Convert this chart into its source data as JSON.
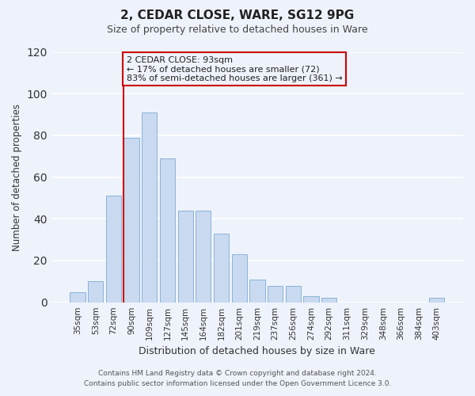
{
  "title": "2, CEDAR CLOSE, WARE, SG12 9PG",
  "subtitle": "Size of property relative to detached houses in Ware",
  "xlabel": "Distribution of detached houses by size in Ware",
  "ylabel": "Number of detached properties",
  "bar_labels": [
    "35sqm",
    "53sqm",
    "72sqm",
    "90sqm",
    "109sqm",
    "127sqm",
    "145sqm",
    "164sqm",
    "182sqm",
    "201sqm",
    "219sqm",
    "237sqm",
    "256sqm",
    "274sqm",
    "292sqm",
    "311sqm",
    "329sqm",
    "348sqm",
    "366sqm",
    "384sqm",
    "403sqm"
  ],
  "bar_heights": [
    5,
    10,
    51,
    79,
    91,
    69,
    44,
    44,
    33,
    23,
    11,
    8,
    8,
    3,
    2,
    0,
    0,
    0,
    0,
    0,
    2
  ],
  "bar_color": "#c8d9f0",
  "bar_edge_color": "#8ab4d8",
  "vline_color": "#cc0000",
  "vline_bar_index": 3,
  "ylim": [
    0,
    120
  ],
  "yticks": [
    0,
    20,
    40,
    60,
    80,
    100,
    120
  ],
  "annotation_line1": "2 CEDAR CLOSE: 93sqm",
  "annotation_line2": "← 17% of detached houses are smaller (72)",
  "annotation_line3": "83% of semi-detached houses are larger (361) →",
  "annotation_box_color": "#cc0000",
  "footer_line1": "Contains HM Land Registry data © Crown copyright and database right 2024.",
  "footer_line2": "Contains public sector information licensed under the Open Government Licence 3.0.",
  "background_color": "#eef2fb",
  "grid_color": "#ffffff",
  "title_fontsize": 11,
  "subtitle_fontsize": 9
}
